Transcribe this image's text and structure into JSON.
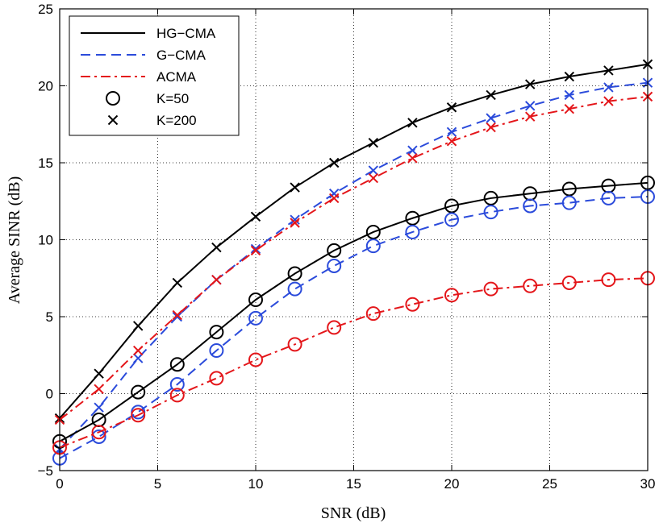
{
  "chart_data": {
    "type": "line",
    "title": "",
    "xlabel": "SNR (dB)",
    "ylabel": "Average SINR (dB)",
    "xlim": [
      0,
      30
    ],
    "ylim": [
      -5,
      25
    ],
    "xticks": [
      0,
      5,
      10,
      15,
      20,
      25,
      30
    ],
    "yticks": [
      -5,
      0,
      5,
      10,
      15,
      20,
      25
    ],
    "grid": true,
    "legend_position": "top-left",
    "x": [
      0,
      2,
      4,
      6,
      8,
      10,
      12,
      14,
      16,
      18,
      20,
      22,
      24,
      26,
      28,
      30
    ],
    "series": [
      {
        "name": "HG-CMA",
        "K": "K=200",
        "color": "#000000",
        "dash": "solid",
        "values": [
          -1.6,
          1.3,
          4.4,
          7.2,
          9.5,
          11.5,
          13.4,
          15.0,
          16.3,
          17.6,
          18.6,
          19.4,
          20.1,
          20.6,
          21.0,
          21.4
        ]
      },
      {
        "name": "G-CMA",
        "K": "K=200",
        "color": "#2b4bdb",
        "dash": "dashed",
        "values": [
          -3.6,
          -0.9,
          2.3,
          5.0,
          7.4,
          9.4,
          11.3,
          13.0,
          14.5,
          15.8,
          17.0,
          17.9,
          18.7,
          19.4,
          19.9,
          20.2
        ]
      },
      {
        "name": "ACMA",
        "K": "K=200",
        "color": "#e4161a",
        "dash": "dashdot",
        "values": [
          -1.7,
          0.3,
          2.8,
          5.1,
          7.4,
          9.3,
          11.1,
          12.7,
          14.0,
          15.3,
          16.4,
          17.3,
          18.0,
          18.5,
          19.0,
          19.3
        ]
      },
      {
        "name": "HG-CMA",
        "K": "K=50",
        "color": "#000000",
        "dash": "solid",
        "values": [
          -3.1,
          -1.7,
          0.1,
          1.9,
          4.0,
          6.1,
          7.8,
          9.3,
          10.5,
          11.4,
          12.2,
          12.7,
          13.0,
          13.3,
          13.5,
          13.7
        ]
      },
      {
        "name": "G-CMA",
        "K": "K=50",
        "color": "#2b4bdb",
        "dash": "dashed",
        "values": [
          -4.2,
          -2.8,
          -1.2,
          0.6,
          2.8,
          4.9,
          6.8,
          8.3,
          9.6,
          10.5,
          11.3,
          11.8,
          12.2,
          12.4,
          12.7,
          12.8
        ]
      },
      {
        "name": "ACMA",
        "K": "K=50",
        "color": "#e4161a",
        "dash": "dashdot",
        "values": [
          -3.5,
          -2.5,
          -1.4,
          -0.1,
          1.0,
          2.2,
          3.2,
          4.3,
          5.2,
          5.8,
          6.4,
          6.8,
          7.0,
          7.2,
          7.4,
          7.5
        ]
      }
    ],
    "legend": [
      {
        "label": "HG−CMA",
        "kind": "line",
        "color": "#000000",
        "dash": "solid"
      },
      {
        "label": "G−CMA",
        "kind": "line",
        "color": "#2b4bdb",
        "dash": "dashed"
      },
      {
        "label": "ACMA",
        "kind": "line",
        "color": "#e4161a",
        "dash": "dashdot"
      },
      {
        "label": "K=50",
        "kind": "marker",
        "marker": "circle",
        "color": "#000000"
      },
      {
        "label": "K=200",
        "kind": "marker",
        "marker": "cross",
        "color": "#000000"
      }
    ]
  }
}
